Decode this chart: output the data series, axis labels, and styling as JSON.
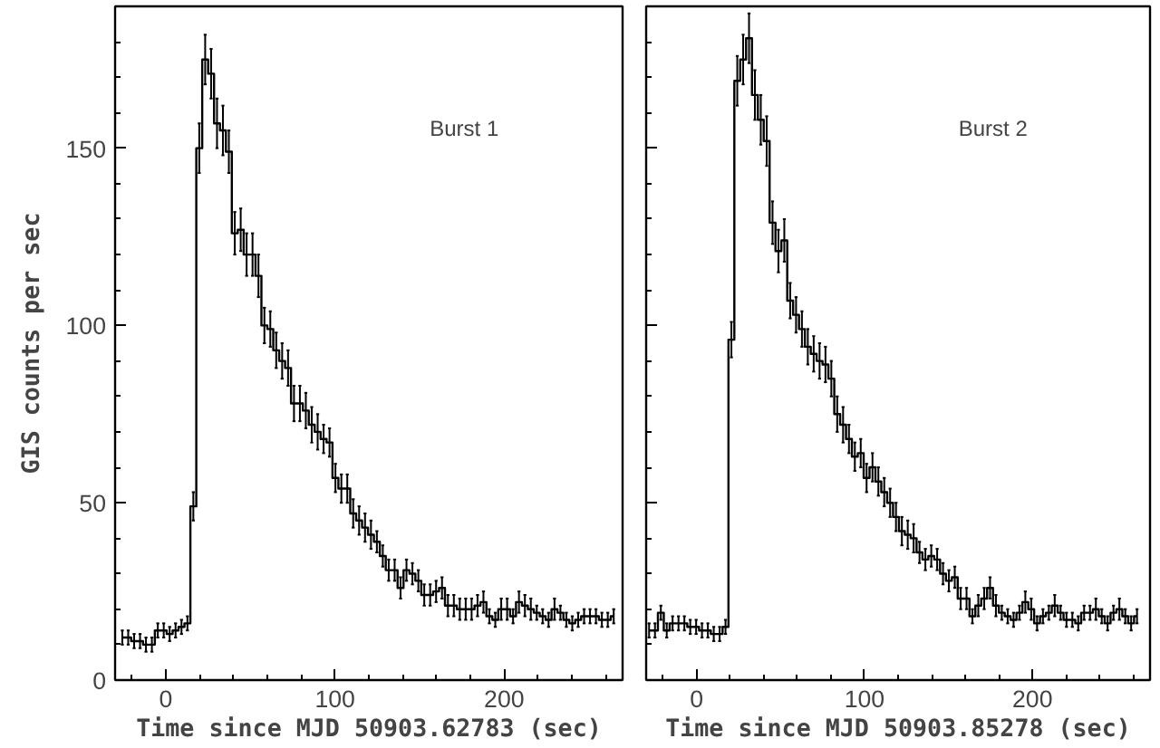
{
  "chart_data": [
    {
      "type": "step",
      "xlabel": "Time since MJD 50903.62783 (sec)",
      "ylabel": "GIS counts per sec",
      "annotations": [
        "Burst 1"
      ],
      "xlim": [
        -30,
        270
      ],
      "ylim": [
        0,
        190
      ],
      "xticks": [
        0,
        100,
        200
      ],
      "yticks": [
        0,
        50,
        100,
        150
      ],
      "grid": false,
      "x": [
        -25.75,
        -22.25,
        -18.75,
        -15.25,
        -11.75,
        -8.25,
        -4.75,
        -1.25,
        2.25,
        5.75,
        9.25,
        12.75,
        16.25,
        19.75,
        23.25,
        26.75,
        30.25,
        33.75,
        37.25,
        40.75,
        44.25,
        47.75,
        51.25,
        54.75,
        58.25,
        61.75,
        65.25,
        68.75,
        72.25,
        75.75,
        79.25,
        82.75,
        86.25,
        89.75,
        93.25,
        96.75,
        100.25,
        103.75,
        107.25,
        110.75,
        114.25,
        117.75,
        121.25,
        124.75,
        128.25,
        131.75,
        135.25,
        138.75,
        142.25,
        145.75,
        149.25,
        152.75,
        156.25,
        159.75,
        163.25,
        166.75,
        170.25,
        173.75,
        177.25,
        180.75,
        184.25,
        187.75,
        191.25,
        194.75,
        198.25,
        201.75,
        205.25,
        208.75,
        212.25,
        215.75,
        219.25,
        222.75,
        226.25,
        229.75,
        233.25,
        236.75,
        240.25,
        243.75,
        247.25,
        250.75,
        254.25,
        257.75,
        261.25,
        264.75
      ],
      "series": [
        {
          "color": "#000000",
          "values": [
            12,
            12,
            11,
            11,
            10,
            10,
            14,
            14,
            13,
            14,
            15,
            16,
            49,
            150,
            175,
            171,
            157,
            155,
            149,
            126,
            127,
            120,
            120,
            114,
            100,
            99,
            93,
            90,
            88,
            78,
            78,
            76,
            72,
            70,
            68,
            67,
            57,
            54,
            54,
            47,
            45,
            43,
            41,
            39,
            35,
            31,
            31,
            26,
            31,
            30,
            28,
            24,
            24,
            25,
            26,
            21,
            21,
            20,
            20,
            20,
            21,
            22,
            18,
            17,
            20,
            20,
            18,
            22,
            21,
            20,
            19,
            18,
            17,
            20,
            19,
            17,
            16,
            17,
            18,
            18,
            18,
            17,
            17,
            18
          ],
          "errors": [
            2,
            2,
            2,
            2,
            2,
            2,
            2,
            2,
            2,
            2,
            2,
            2,
            4,
            7,
            7,
            7,
            7,
            7,
            6,
            6,
            6,
            6,
            6,
            6,
            5,
            5,
            5,
            5,
            5,
            5,
            5,
            5,
            5,
            5,
            4,
            4,
            4,
            4,
            4,
            4,
            4,
            4,
            4,
            3,
            3,
            3,
            3,
            3,
            3,
            3,
            3,
            3,
            3,
            3,
            3,
            3,
            3,
            3,
            3,
            3,
            3,
            3,
            2,
            2,
            3,
            3,
            2,
            3,
            3,
            3,
            2,
            2,
            2,
            3,
            2,
            2,
            2,
            2,
            2,
            2,
            2,
            2,
            2,
            2
          ]
        }
      ]
    },
    {
      "type": "step",
      "xlabel": "Time since MJD 50903.85278 (sec)",
      "annotations": [
        "Burst 2"
      ],
      "xlim": [
        -30,
        270
      ],
      "ylim": [
        0,
        190
      ],
      "xticks": [
        0,
        100,
        200
      ],
      "yticks": [
        0,
        50,
        100,
        150
      ],
      "tick_labels": "x",
      "grid": false,
      "x": [
        -28.25,
        -24.75,
        -21.25,
        -17.75,
        -14.25,
        -10.75,
        -7.25,
        -3.75,
        -0.25,
        3.25,
        6.75,
        10.25,
        13.75,
        17.25,
        20.75,
        24.25,
        27.75,
        31.25,
        34.75,
        38.25,
        41.75,
        45.25,
        48.75,
        52.25,
        55.75,
        59.25,
        62.75,
        66.25,
        69.75,
        73.25,
        76.75,
        80.25,
        83.75,
        87.25,
        90.75,
        94.25,
        97.75,
        101.25,
        104.75,
        108.25,
        111.75,
        115.25,
        118.75,
        122.25,
        125.75,
        129.25,
        132.75,
        136.25,
        139.75,
        143.25,
        146.75,
        150.25,
        153.75,
        157.25,
        160.75,
        164.25,
        167.75,
        171.25,
        174.75,
        178.25,
        181.75,
        185.25,
        188.75,
        192.25,
        195.75,
        199.25,
        202.75,
        206.25,
        209.75,
        213.25,
        216.75,
        220.25,
        223.75,
        227.25,
        230.75,
        234.25,
        237.75,
        241.25,
        244.75,
        248.25,
        251.75,
        255.25,
        258.75,
        262.25
      ],
      "series": [
        {
          "color": "#000000",
          "values": [
            14,
            14,
            19,
            14,
            16,
            16,
            16,
            15,
            15,
            14,
            14,
            13,
            13,
            15,
            96,
            169,
            175,
            181,
            165,
            158,
            152,
            129,
            121,
            124,
            107,
            103,
            99,
            94,
            92,
            90,
            89,
            85,
            75,
            72,
            68,
            63,
            64,
            57,
            60,
            56,
            53,
            50,
            46,
            42,
            41,
            40,
            36,
            34,
            35,
            34,
            30,
            28,
            29,
            23,
            23,
            18,
            21,
            23,
            26,
            21,
            19,
            18,
            17,
            19,
            22,
            20,
            16,
            18,
            19,
            21,
            19,
            17,
            17,
            16,
            19,
            19,
            20,
            18,
            16,
            19,
            20,
            18,
            16,
            18
          ],
          "errors": [
            2,
            2,
            2,
            2,
            2,
            2,
            2,
            2,
            2,
            2,
            2,
            2,
            2,
            2,
            5,
            7,
            7,
            7,
            7,
            7,
            7,
            6,
            6,
            6,
            5,
            5,
            5,
            5,
            5,
            5,
            5,
            5,
            5,
            5,
            4,
            4,
            4,
            4,
            4,
            4,
            4,
            4,
            4,
            4,
            4,
            4,
            3,
            3,
            3,
            3,
            3,
            3,
            3,
            3,
            3,
            2,
            3,
            3,
            3,
            3,
            2,
            2,
            2,
            2,
            3,
            3,
            2,
            2,
            2,
            3,
            2,
            2,
            2,
            2,
            2,
            2,
            3,
            2,
            2,
            2,
            3,
            2,
            2,
            2
          ]
        }
      ]
    }
  ]
}
